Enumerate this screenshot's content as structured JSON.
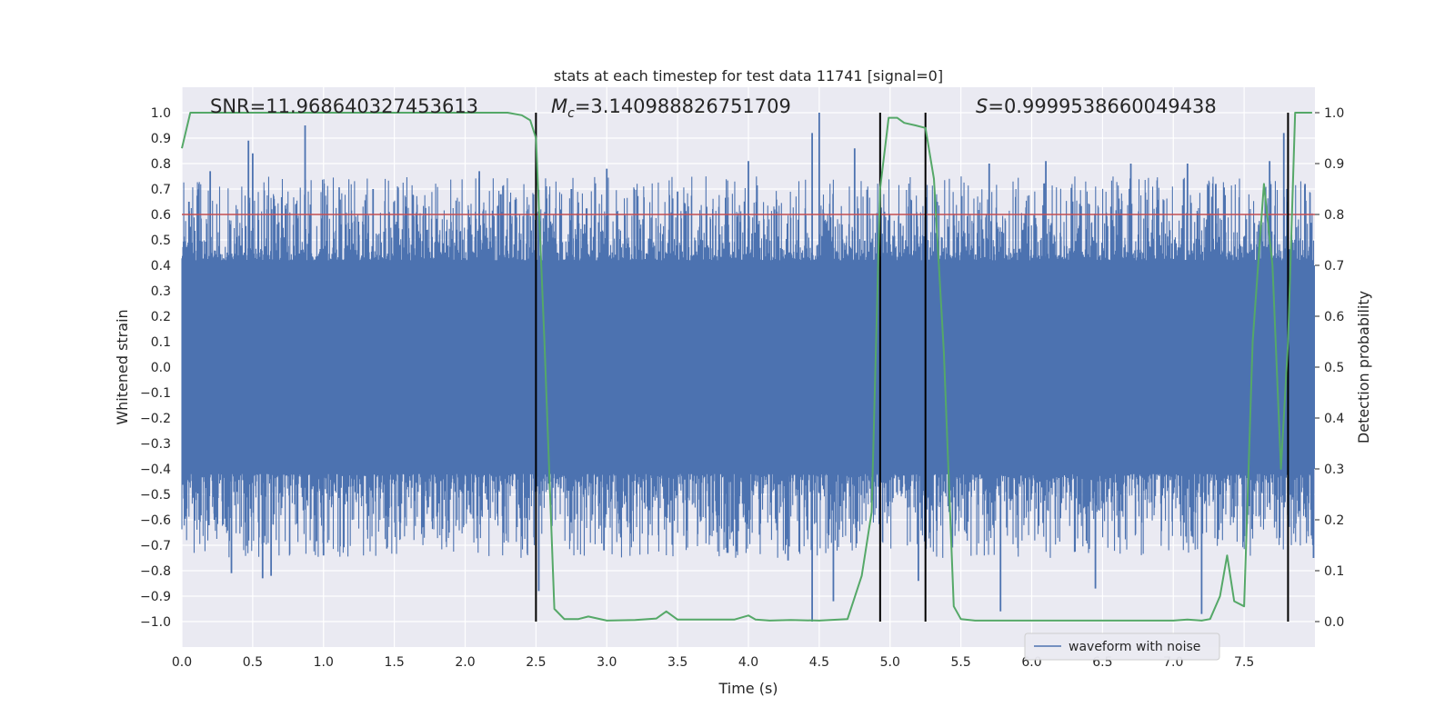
{
  "chart_data": {
    "type": "line",
    "title": "stats at each timestep for test data 11741 [signal=0]",
    "xlabel": "Time (s)",
    "ylabel": "Whitened strain",
    "y2label": "Detection probability",
    "xlim": [
      0.0,
      8.0
    ],
    "ylim": [
      -1.1,
      1.1
    ],
    "y2lim": [
      -0.05,
      1.05
    ],
    "xticks": [
      "0.0",
      "0.5",
      "1.0",
      "1.5",
      "2.0",
      "2.5",
      "3.0",
      "3.5",
      "4.0",
      "4.5",
      "5.0",
      "5.5",
      "6.0",
      "6.5",
      "7.0",
      "7.5"
    ],
    "yticks": [
      "1.0",
      "0.9",
      "0.8",
      "0.7",
      "0.6",
      "0.5",
      "0.4",
      "0.3",
      "0.2",
      "0.1",
      "0.0",
      "−0.1",
      "−0.2",
      "−0.3",
      "−0.4",
      "−0.5",
      "−0.6",
      "−0.7",
      "−0.8",
      "−0.9",
      "−1.0"
    ],
    "y2ticks": [
      "1.0",
      "0.9",
      "0.8",
      "0.7",
      "0.6",
      "0.5",
      "0.4",
      "0.3",
      "0.2",
      "0.1",
      "0.0"
    ],
    "threshold": 0.8,
    "vlines": [
      2.5,
      4.93,
      5.25,
      7.81
    ],
    "annotations": {
      "snr": "SNR=11.968640327453613",
      "mc_symbol": "M",
      "mc_sub": "c",
      "mc_value": "=3.140988826751709",
      "s_symbol": "S",
      "s_value": "=0.9999538660049438"
    },
    "legend": [
      {
        "name": "waveform with noise",
        "color": "#4c72b0"
      }
    ],
    "waveform": {
      "name": "waveform with noise",
      "color": "#4c72b0",
      "core_amplitude": 0.4,
      "peaks": [
        {
          "t": 0.05,
          "v": 0.65
        },
        {
          "t": 0.2,
          "v": 0.77
        },
        {
          "t": 0.23,
          "v": -0.6
        },
        {
          "t": 0.35,
          "v": -0.81
        },
        {
          "t": 0.47,
          "v": 0.89
        },
        {
          "t": 0.5,
          "v": 0.84
        },
        {
          "t": 0.57,
          "v": -0.83
        },
        {
          "t": 0.63,
          "v": -0.82
        },
        {
          "t": 0.87,
          "v": 0.95
        },
        {
          "t": 1.0,
          "v": -0.74
        },
        {
          "t": 1.35,
          "v": 0.7
        },
        {
          "t": 1.7,
          "v": -0.63
        },
        {
          "t": 2.1,
          "v": 0.77
        },
        {
          "t": 2.52,
          "v": -0.88
        },
        {
          "t": 2.75,
          "v": 0.7
        },
        {
          "t": 3.0,
          "v": 0.78
        },
        {
          "t": 2.98,
          "v": -0.72
        },
        {
          "t": 3.5,
          "v": 0.69
        },
        {
          "t": 3.85,
          "v": -0.73
        },
        {
          "t": 4.0,
          "v": 0.81
        },
        {
          "t": 4.28,
          "v": -0.76
        },
        {
          "t": 4.45,
          "v": 0.92
        },
        {
          "t": 4.5,
          "v": 1.0
        },
        {
          "t": 4.45,
          "v": -1.0
        },
        {
          "t": 4.6,
          "v": -0.92
        },
        {
          "t": 4.75,
          "v": 0.86
        },
        {
          "t": 5.2,
          "v": -0.84
        },
        {
          "t": 5.7,
          "v": 0.8
        },
        {
          "t": 5.78,
          "v": -0.96
        },
        {
          "t": 6.1,
          "v": 0.81
        },
        {
          "t": 6.45,
          "v": -0.87
        },
        {
          "t": 6.7,
          "v": 0.8
        },
        {
          "t": 7.1,
          "v": 0.8
        },
        {
          "t": 7.2,
          "v": -0.97
        },
        {
          "t": 7.3,
          "v": 0.72
        },
        {
          "t": 7.68,
          "v": 0.81
        },
        {
          "t": 7.78,
          "v": 0.92
        },
        {
          "t": 7.93,
          "v": 0.72
        },
        {
          "t": 7.99,
          "v": -0.75
        }
      ]
    },
    "probability": {
      "name": "detection probability",
      "color": "#55a868",
      "x": [
        0.0,
        0.06,
        0.15,
        0.5,
        1.0,
        1.5,
        2.0,
        2.3,
        2.4,
        2.46,
        2.5,
        2.56,
        2.63,
        2.7,
        2.8,
        2.87,
        3.0,
        3.2,
        3.35,
        3.42,
        3.5,
        3.7,
        3.9,
        4.0,
        4.05,
        4.15,
        4.3,
        4.5,
        4.7,
        4.8,
        4.87,
        4.93,
        4.99,
        5.05,
        5.1,
        5.18,
        5.25,
        5.31,
        5.38,
        5.45,
        5.5,
        5.6,
        6.0,
        6.5,
        7.0,
        7.1,
        7.2,
        7.26,
        7.33,
        7.38,
        7.43,
        7.5,
        7.56,
        7.64,
        7.7,
        7.76,
        7.81,
        7.86,
        7.93,
        7.98
      ],
      "y": [
        0.93,
        1.0,
        1.0,
        1.0,
        1.0,
        1.0,
        1.0,
        1.0,
        0.995,
        0.985,
        0.95,
        0.55,
        0.025,
        0.005,
        0.005,
        0.01,
        0.002,
        0.003,
        0.006,
        0.02,
        0.004,
        0.004,
        0.004,
        0.012,
        0.004,
        0.002,
        0.003,
        0.002,
        0.005,
        0.09,
        0.215,
        0.85,
        0.99,
        0.99,
        0.98,
        0.975,
        0.97,
        0.87,
        0.53,
        0.03,
        0.005,
        0.002,
        0.002,
        0.002,
        0.002,
        0.004,
        0.002,
        0.005,
        0.05,
        0.13,
        0.04,
        0.03,
        0.55,
        0.86,
        0.7,
        0.3,
        0.55,
        1.0,
        1.0,
        1.0
      ]
    }
  }
}
